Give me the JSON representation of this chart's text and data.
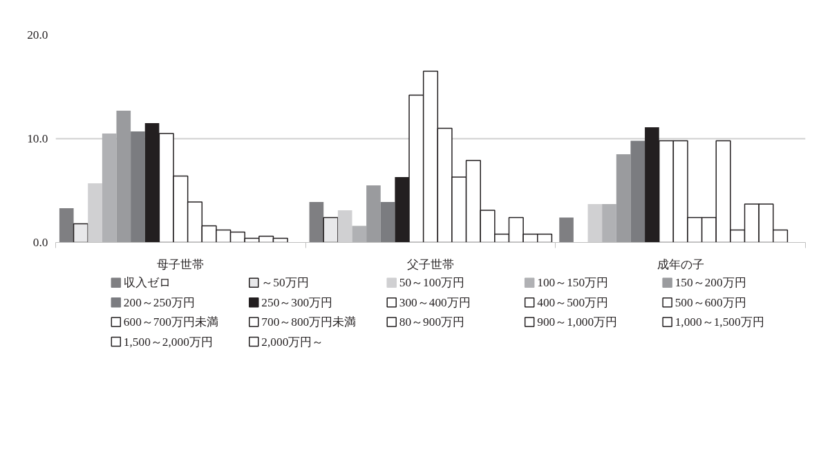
{
  "chart_data": {
    "type": "bar",
    "categories": [
      "母子世帯",
      "父子世帯",
      "成年の子"
    ],
    "ylim": [
      0,
      20
    ],
    "yticks": [
      {
        "value": 0,
        "label": "0.0"
      },
      {
        "value": 10,
        "label": "10.0"
      },
      {
        "value": 20,
        "label": "20.0"
      }
    ],
    "grid": "y",
    "legend": "bottom",
    "series": [
      {
        "name": "収入ゼロ",
        "color": "#7f7f82",
        "values": [
          3.3,
          3.9,
          2.4
        ]
      },
      {
        "name": "～50万円",
        "color": "#e8e8ea",
        "values": [
          1.8,
          2.4,
          null
        ]
      },
      {
        "name": "50～100万円",
        "color": "#d0d0d2",
        "values": [
          5.7,
          3.1,
          3.7
        ]
      },
      {
        "name": "100～150万円",
        "color": "#b0b1b4",
        "values": [
          10.5,
          1.6,
          3.7
        ]
      },
      {
        "name": "150～200万円",
        "color": "#9a9b9e",
        "values": [
          12.7,
          5.5,
          8.5
        ]
      },
      {
        "name": "200～250万円",
        "color": "#7b7c80",
        "values": [
          10.7,
          3.9,
          9.8
        ]
      },
      {
        "name": "250～300万円",
        "color": "#231f20",
        "values": [
          11.5,
          6.3,
          11.1
        ]
      },
      {
        "name": "300～400万円",
        "color": "#ffffff",
        "values": [
          10.5,
          14.2,
          9.8
        ]
      },
      {
        "name": "400～500万円",
        "color": "#ffffff",
        "values": [
          6.4,
          16.5,
          9.8
        ]
      },
      {
        "name": "500～600万円",
        "color": "#ffffff",
        "values": [
          3.9,
          11.0,
          2.4
        ]
      },
      {
        "name": "600～700万円未満",
        "color": "#ffffff",
        "values": [
          1.6,
          6.3,
          2.4
        ]
      },
      {
        "name": "700～800万円未満",
        "color": "#ffffff",
        "values": [
          1.2,
          7.9,
          9.8
        ]
      },
      {
        "name": "80～900万円",
        "color": "#ffffff",
        "values": [
          1.0,
          3.1,
          1.2
        ]
      },
      {
        "name": "900～1,000万円",
        "color": "#ffffff",
        "values": [
          0.4,
          0.8,
          3.7
        ]
      },
      {
        "name": "1,000～1,500万円",
        "color": "#ffffff",
        "values": [
          0.6,
          2.4,
          3.7
        ]
      },
      {
        "name": "1,500～2,000万円",
        "color": "#ffffff",
        "values": [
          0.4,
          0.8,
          1.2
        ]
      },
      {
        "name": "2,000万円～",
        "color": "#ffffff",
        "values": [
          null,
          0.8,
          null
        ]
      }
    ]
  }
}
